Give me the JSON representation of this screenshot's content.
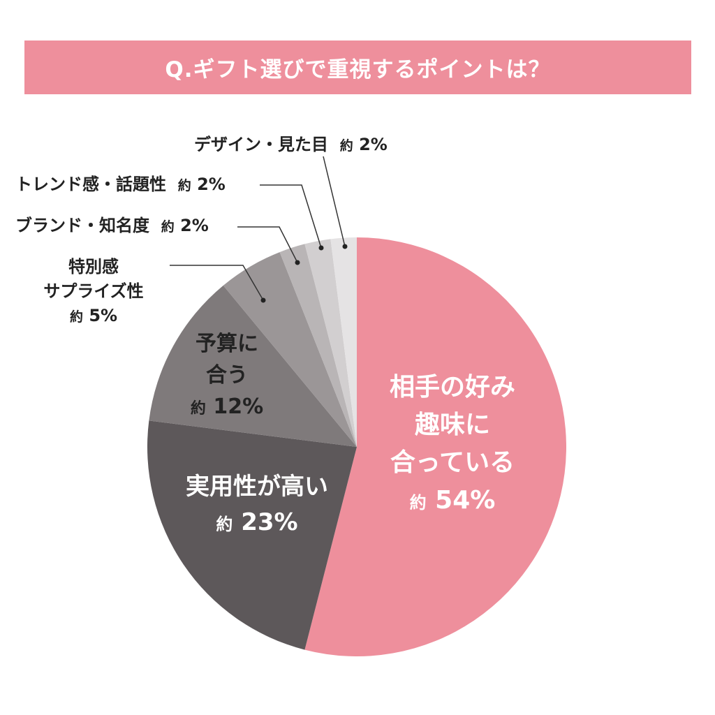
{
  "title": "Q.ギフト選びで重視するポイントは？",
  "chart_data": {
    "type": "pie",
    "title": "Q.ギフト選びで重視するポイントは？",
    "start": "12 o'clock, clockwise",
    "slices": [
      {
        "label": "相手の好み趣味に合っている",
        "value": 54,
        "value_label": "約 54%",
        "color": "#ee8f9c"
      },
      {
        "label": "実用性が高い",
        "value": 23,
        "value_label": "約 23%",
        "color": "#5d585a"
      },
      {
        "label": "予算に合う",
        "value": 12,
        "value_label": "約 12%",
        "color": "#7f7a7b"
      },
      {
        "label": "特別感サプライズ性",
        "value": 5,
        "value_label": "約 5%",
        "color": "#9b9697"
      },
      {
        "label": "ブランド・知名度",
        "value": 2,
        "value_label": "約 2%",
        "color": "#b9b5b6"
      },
      {
        "label": "トレンド感・話題性",
        "value": 2,
        "value_label": "約 2%",
        "color": "#d2cfd0"
      },
      {
        "label": "デザイン・見た目",
        "value": 2,
        "value_label": "約 2%",
        "color": "#e5e3e4"
      }
    ]
  },
  "labels": {
    "s0": [
      "相手の好み",
      "趣味に",
      "合っている"
    ],
    "s1": [
      "実用性が高い"
    ],
    "s2": [
      "予算に",
      "合う"
    ],
    "s3": [
      "特別感",
      "サプライズ性"
    ],
    "approx": "約"
  },
  "values_text": {
    "s0": "54%",
    "s1": "23%",
    "s2": "12%",
    "s3": "5%",
    "s4": "2%",
    "s5": "2%",
    "s6": "2%"
  }
}
